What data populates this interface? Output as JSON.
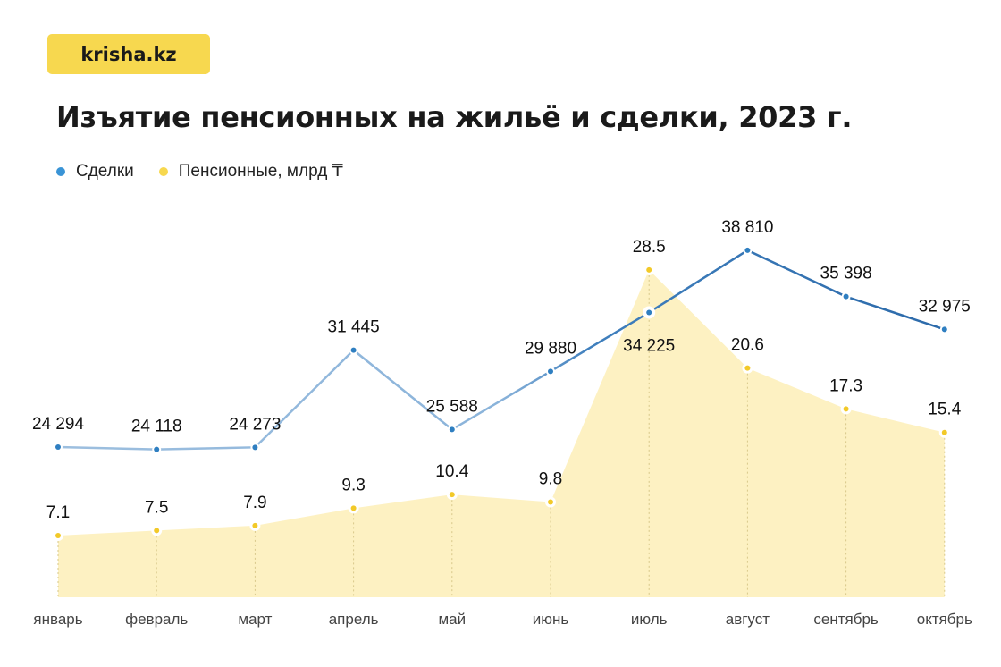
{
  "logo": "krisha.kz",
  "chart_data": {
    "type": "line",
    "title": "Изъятие пенсионных на жильё и сделки, 2023 г.",
    "categories": [
      "январь",
      "февраль",
      "март",
      "апрель",
      "май",
      "июнь",
      "июль",
      "август",
      "сентябрь",
      "октябрь"
    ],
    "series": [
      {
        "name": "Сделки",
        "type": "line",
        "color": "#2f7fc1",
        "values": [
          24294,
          24118,
          24273,
          31445,
          25588,
          29880,
          34225,
          38810,
          35398,
          32975
        ],
        "labels": [
          "24 294",
          "24 118",
          "24 273",
          "31 445",
          "25 588",
          "29 880",
          "34 225",
          "38 810",
          "35 398",
          "32 975"
        ]
      },
      {
        "name": "Пенсионные, млрд ₸",
        "type": "area",
        "color": "#f7d84f",
        "values": [
          7.1,
          7.5,
          7.9,
          9.3,
          10.4,
          9.8,
          28.5,
          20.6,
          17.3,
          15.4
        ],
        "labels": [
          "7.1",
          "7.5",
          "7.9",
          "9.3",
          "10.4",
          "9.8",
          "28.5",
          "20.6",
          "17.3",
          "15.4"
        ]
      }
    ],
    "legend": "top-left",
    "grid": false,
    "xlabel": "",
    "ylabel": ""
  }
}
